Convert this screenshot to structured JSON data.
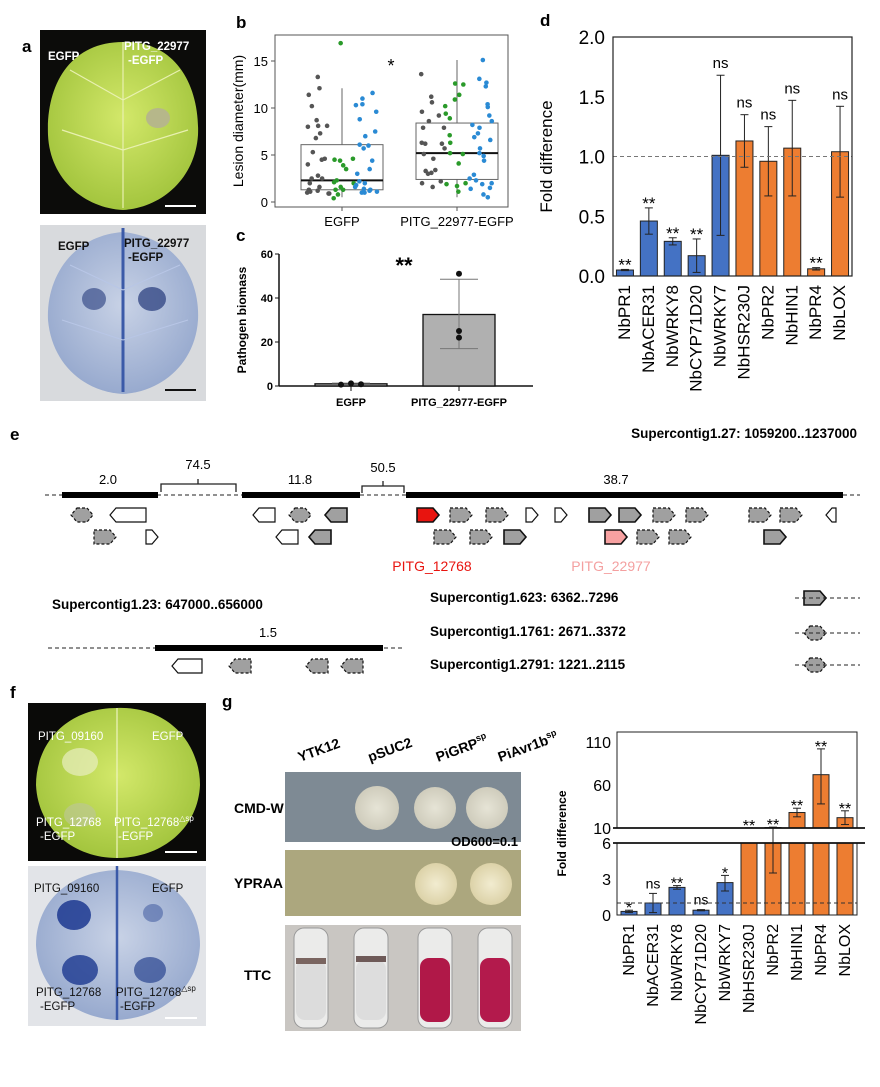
{
  "panel_labels": {
    "a": "a",
    "b": "b",
    "c": "c",
    "d": "d",
    "e": "e",
    "f": "f",
    "g": "g"
  },
  "panel_a": {
    "top": {
      "left": "EGFP",
      "right_1": "PITG_22977",
      "right_2": "-EGFP"
    },
    "bottom": {
      "left": "EGFP",
      "right_1": "PITG_22977",
      "right_2": "-EGFP"
    }
  },
  "panel_f": {
    "top": {
      "tl": "PITG_09160",
      "tr": "EGFP",
      "bl_1": "PITG_12768",
      "bl_2": "-EGFP",
      "br_1": "PITG_12768",
      "br_sup": "△sp",
      "br_2": "-EGFP"
    },
    "bottom": {
      "tl": "PITG_09160",
      "tr": "EGFP",
      "bl_1": "PITG_12768",
      "bl_2": "-EGFP",
      "br_1": "PITG_12768",
      "br_sup": "△sp",
      "br_2": "-EGFP"
    }
  },
  "panel_e": {
    "main_contig": "Supercontig1.27: 1059200..1237000",
    "distances": {
      "d1": "2.0",
      "gap1": "74.5",
      "d2": "11.8",
      "gap2": "50.5",
      "d3": "38.7"
    },
    "gene_red": "PITG_12768",
    "gene_pink": "PITG_22977",
    "contig_b": "Supercontig1.23: 647000..656000",
    "contig_b_dist": "1.5",
    "contig_c": "Supercontig1.623: 6362..7296",
    "contig_d": "Supercontig1.1761: 2671..3372",
    "contig_e": "Supercontig1.2791: 1221..2115",
    "colors": {
      "red": "#e8140f",
      "pink": "#f7a1a1",
      "grey": "#a0a0a0"
    }
  },
  "panel_g": {
    "columns": [
      {
        "main": "YTK12",
        "sup": ""
      },
      {
        "main": "pSUC2",
        "sup": ""
      },
      {
        "main": "PiGRP",
        "sup": "sp"
      },
      {
        "main": "PiAvr1b",
        "sup": "sp"
      }
    ],
    "rows": {
      "cmdw": "CMD-W",
      "ypraa": "YPRAA",
      "ttc": "TTC"
    },
    "od_label": "OD600=0.1"
  },
  "chart_data": [
    {
      "id": "b",
      "type": "box+scatter",
      "ylabel": "Lesion diameter(mm)",
      "ylim": [
        0,
        17.5
      ],
      "yticks": [
        0,
        5,
        10,
        15
      ],
      "categories": [
        "EGFP",
        "PITG_22977-EGFP"
      ],
      "annotation": "*",
      "boxes": [
        {
          "min": 0.5,
          "q1": 1.3,
          "median": 2.3,
          "q3": 6.1,
          "max": 12.1
        },
        {
          "min": 0.5,
          "q1": 2.4,
          "median": 5.2,
          "q3": 8.4,
          "max": 15.1
        }
      ],
      "series_colors": [
        "#555555",
        "#2a9a2a",
        "#2a8ad4"
      ],
      "points": [
        [
          [
            13.3,
            12.1,
            11.4,
            10.2,
            8.7,
            8.1,
            8.0,
            8.1,
            7.3,
            6.8,
            5.3,
            4.6,
            4.5,
            4.0,
            2.8,
            2.5,
            2.5,
            2.0,
            1.6,
            1.2,
            1.1,
            1.0,
            0.9,
            0.9,
            1.3
          ],
          [
            16.9,
            4.6,
            4.5,
            4.4,
            3.9,
            3.5,
            2.3,
            2.1,
            2.0,
            1.6,
            1.3,
            1.3,
            0.8,
            0.4
          ],
          [
            11.6,
            11.0,
            10.4,
            10.3,
            9.6,
            8.8,
            7.5,
            7.0,
            6.1,
            6.0,
            5.7,
            4.4,
            3.5,
            3.0,
            2.2,
            2.0,
            1.8,
            1.6,
            1.4,
            1.3,
            1.2,
            1.1,
            1.0,
            1.0
          ]
        ],
        [
          [
            13.6,
            11.2,
            10.6,
            9.6,
            9.2,
            8.6,
            7.9,
            7.9,
            6.3,
            6.2,
            6.2,
            5.7,
            5.1,
            4.6,
            3.4,
            3.3,
            3.1,
            3.0,
            2.2,
            2.0,
            1.6
          ],
          [
            12.6,
            12.5,
            11.4,
            10.9,
            10.2,
            9.4,
            8.9,
            7.1,
            6.3,
            5.2,
            5.1,
            4.1,
            2.0,
            1.9,
            1.7,
            1.1
          ],
          [
            15.1,
            13.1,
            12.7,
            12.3,
            10.4,
            10.1,
            9.2,
            8.6,
            8.2,
            7.9,
            7.3,
            6.9,
            6.6,
            5.7,
            5.2,
            4.9,
            4.4,
            2.9,
            2.5,
            2.3,
            2.0,
            1.9,
            1.5,
            1.4,
            0.8,
            0.5
          ]
        ]
      ]
    },
    {
      "id": "c",
      "type": "bar",
      "ylabel": "Pathogen biomass",
      "ylim": [
        0,
        60
      ],
      "yticks": [
        0,
        20,
        40,
        60
      ],
      "categories": [
        "EGFP",
        "PITG_22977-EGFP"
      ],
      "values": [
        1.0,
        32.5
      ],
      "err_low": [
        0.6,
        17.0
      ],
      "err_high": [
        1.3,
        48.5
      ],
      "points": [
        [
          0.6,
          1.2,
          0.8
        ],
        [
          51,
          25,
          22
        ]
      ],
      "annotation": "**",
      "bar_color": "#b0b0b0"
    },
    {
      "id": "d",
      "type": "bar",
      "ylabel": "Fold difference",
      "ylim": [
        0,
        2.0
      ],
      "yticks": [
        "0.0",
        "0.5",
        "1.0",
        "1.5",
        "2.0"
      ],
      "reference_line": 1.0,
      "categories": [
        "NbPR1",
        "NbACER31",
        "NbWRKY8",
        "NbCYP71D20",
        "NbWRKY7",
        "NbHSR230J",
        "NbPR2",
        "NbHIN1",
        "NbPR4",
        "NbLOX"
      ],
      "values": [
        0.05,
        0.46,
        0.29,
        0.17,
        1.01,
        1.13,
        0.96,
        1.07,
        0.06,
        1.04
      ],
      "errors": [
        0.005,
        0.11,
        0.03,
        0.14,
        0.67,
        0.22,
        0.29,
        0.4,
        0.01,
        0.38
      ],
      "significance": [
        "**",
        "**",
        "**",
        "**",
        "ns",
        "ns",
        "ns",
        "ns",
        "**",
        "ns"
      ],
      "colors": [
        "#4472c4",
        "#4472c4",
        "#4472c4",
        "#4472c4",
        "#4472c4",
        "#ed7d31",
        "#ed7d31",
        "#ed7d31",
        "#ed7d31",
        "#ed7d31"
      ]
    },
    {
      "id": "g",
      "type": "bar",
      "ylabel": "Fold difference",
      "axis_break": [
        6,
        10
      ],
      "yticks_lower": [
        0,
        3,
        6
      ],
      "yticks_upper": [
        10,
        60,
        110
      ],
      "reference_line": 1.0,
      "categories": [
        "NbPR1",
        "NbACER31",
        "NbWRKY8",
        "NbCYP71D20",
        "NbWRKY7",
        "NbHSR230J",
        "NbPR2",
        "NbHIN1",
        "NbPR4",
        "NbLOX"
      ],
      "values": [
        0.3,
        1.0,
        2.3,
        0.4,
        2.7,
        10.0,
        10.5,
        28,
        72,
        22
      ],
      "err_low": [
        0.2,
        0.2,
        2.15,
        0.35,
        2.0,
        10.0,
        3.5,
        23,
        38,
        14
      ],
      "err_high": [
        0.4,
        1.8,
        2.45,
        0.45,
        3.3,
        10.2,
        11.0,
        33,
        102,
        30
      ],
      "significance": [
        "*",
        "ns",
        "**",
        "ns",
        "*",
        "**",
        "**",
        "**",
        "**",
        "**"
      ],
      "colors": [
        "#4472c4",
        "#4472c4",
        "#4472c4",
        "#4472c4",
        "#4472c4",
        "#ed7d31",
        "#ed7d31",
        "#ed7d31",
        "#ed7d31",
        "#ed7d31"
      ]
    }
  ]
}
